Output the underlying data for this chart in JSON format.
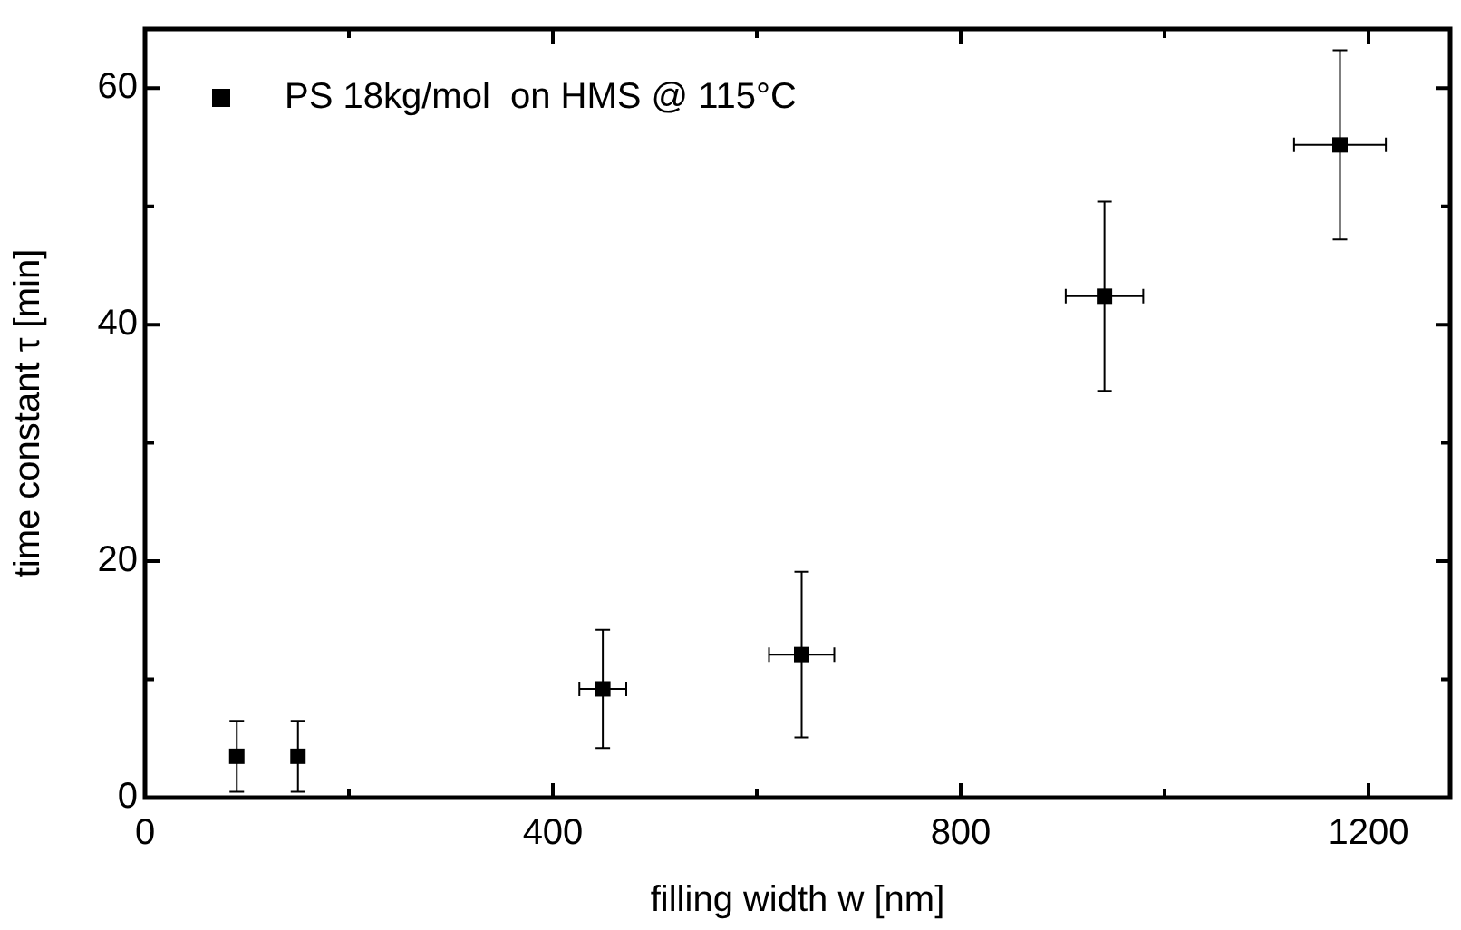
{
  "chart_data": {
    "type": "scatter",
    "xlabel": "filling width w [nm]",
    "ylabel": "time constant τ [min]",
    "xlim": [
      0,
      1280
    ],
    "ylim": [
      0,
      65
    ],
    "xticks": [
      0,
      {
        "value": 200,
        "label": null
      },
      400,
      {
        "value": 600,
        "label": null
      },
      800,
      {
        "value": 1000,
        "label": null
      },
      1200
    ],
    "yticks": [
      0,
      {
        "value": 10,
        "label": null
      },
      20,
      {
        "value": 30,
        "label": null
      },
      40,
      {
        "value": 50,
        "label": null
      },
      60
    ],
    "grid": false,
    "legend": "top left",
    "marker": "square",
    "series": [
      {
        "name": "PS 18kg/mol  on HMS @ 115°C",
        "color": "#000000",
        "x": [
          90,
          150,
          449,
          644,
          941,
          1172
        ],
        "values": [
          3.5,
          3.5,
          9.2,
          12.1,
          42.4,
          55.2
        ],
        "errors": [
          3,
          3,
          5,
          7,
          8,
          8
        ],
        "xerrors": [
          null,
          null,
          23,
          32,
          38,
          45
        ]
      }
    ]
  }
}
